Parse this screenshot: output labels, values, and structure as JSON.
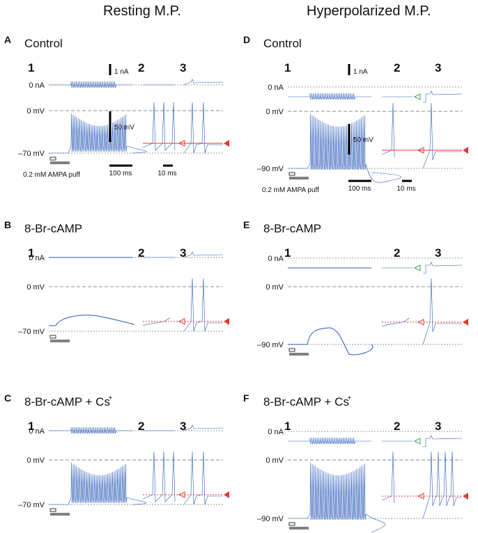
{
  "columns": {
    "left": "Resting M.P.",
    "right": "Hyperpolarized M.P."
  },
  "panels": [
    {
      "letter": "A",
      "title": "Control",
      "sub": [
        "1",
        "2",
        "3"
      ],
      "ylabels": [
        "0 nA",
        "0 mV",
        "–70 mV"
      ],
      "scales": {
        "current": "1 nA",
        "voltage": "50 mV",
        "time1": "100 ms",
        "time2": "10 ms"
      },
      "puff": "0.2 mM AMPA puff"
    },
    {
      "letter": "B",
      "title": "8-Br-cAMP",
      "sub": [
        "1",
        "2",
        "3"
      ],
      "ylabels": [
        "0 nA",
        "0 mV",
        "–70 mV"
      ]
    },
    {
      "letter": "C",
      "title": "8-Br-cAMP + Cs",
      "title_sup": "+",
      "sub": [
        "1",
        "2",
        "3"
      ],
      "ylabels": [
        "0 nA",
        "0 mV",
        "–70 mV"
      ]
    },
    {
      "letter": "D",
      "title": "Control",
      "sub": [
        "1",
        "2",
        "3"
      ],
      "ylabels": [
        "0 nA",
        "0 mV",
        "–90 mV"
      ],
      "scales": {
        "current": "1 nA",
        "voltage": "50 mV",
        "time1": "100 ms",
        "time2": "10 ms"
      },
      "puff": "0.2 mM AMPA puff"
    },
    {
      "letter": "E",
      "title": "8-Br-cAMP",
      "sub": [
        "1",
        "2",
        "3"
      ],
      "ylabels": [
        "0 nA",
        "0 mV",
        "–90 mV"
      ]
    },
    {
      "letter": "F",
      "title": "8-Br-cAMP + Cs",
      "title_sup": "+",
      "sub": [
        "1",
        "2",
        "3"
      ],
      "ylabels": [
        "0 nA",
        "0 mV",
        "–90 mV"
      ]
    }
  ],
  "colors": {
    "trace": "#2a5ab8",
    "threshold": "#e4372f",
    "holding_marker": "#3aa655",
    "puff_bar": "#808080"
  }
}
